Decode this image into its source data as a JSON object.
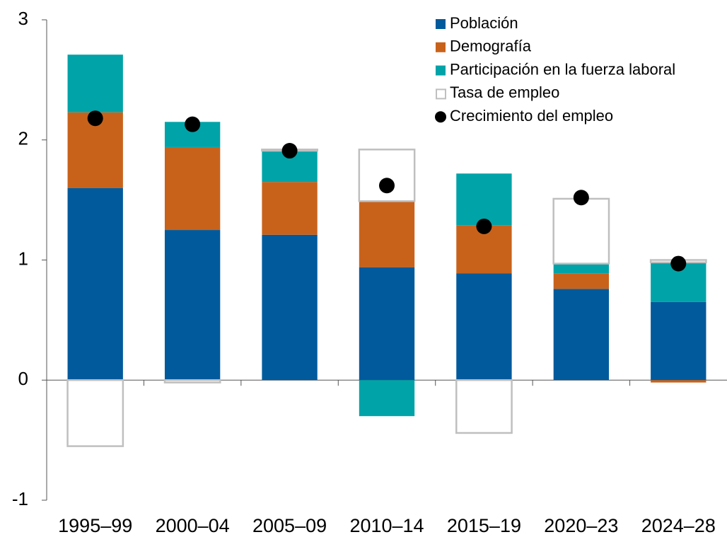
{
  "chart_data": {
    "type": "bar",
    "stacked": true,
    "categories": [
      "1995–99",
      "2000–04",
      "2005–09",
      "2010–14",
      "2015–19",
      "2020–23",
      "2024–28"
    ],
    "series": [
      {
        "name": "Población",
        "color": "#005a9c",
        "values": [
          1.6,
          1.25,
          1.21,
          0.94,
          0.89,
          0.76,
          0.65
        ]
      },
      {
        "name": "Demografía",
        "color": "#c8621b",
        "values": [
          0.63,
          0.69,
          0.44,
          0.55,
          0.4,
          0.13,
          -0.02
        ]
      },
      {
        "name": "Participación en la fuerza laboral",
        "color": "#00a3a8",
        "values": [
          0.48,
          0.21,
          0.26,
          -0.3,
          0.43,
          0.08,
          0.33
        ]
      },
      {
        "name": "Tasa de empleo",
        "color": "#bfbfbf",
        "fill": "none",
        "values": [
          -0.55,
          -0.02,
          0.01,
          0.43,
          -0.44,
          0.54,
          0.02
        ]
      },
      {
        "name": "Crecimiento del empleo",
        "color": "#000000",
        "type": "scatter",
        "values": [
          2.18,
          2.13,
          1.91,
          1.62,
          1.28,
          1.52,
          0.97
        ]
      }
    ],
    "ylim": [
      -1,
      3
    ],
    "yticks": [
      -1,
      0,
      1,
      2,
      3
    ],
    "legend": "upper right"
  }
}
